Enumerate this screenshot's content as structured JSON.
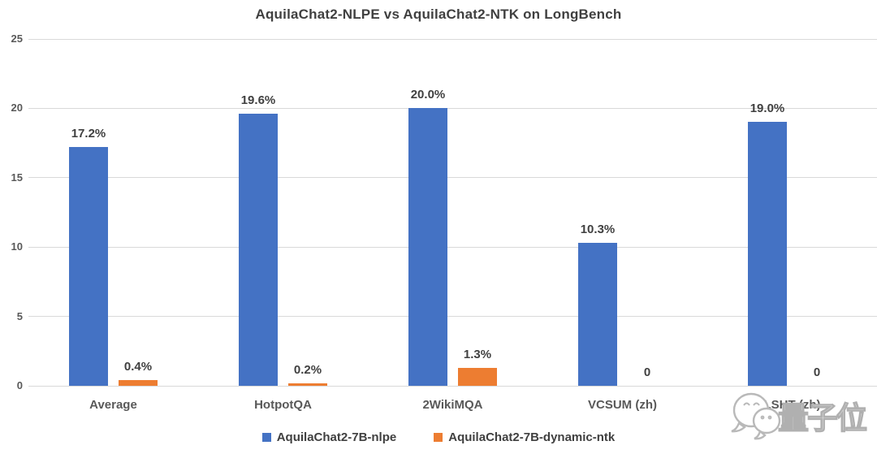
{
  "chart_data": {
    "type": "bar",
    "title": "AquilaChat2-NLPE vs AquilaChat2-NTK on LongBench",
    "categories": [
      "Average",
      "HotpotQA",
      "2WikiMQA",
      "VCSUM (zh)",
      "LSHT (zh)"
    ],
    "series": [
      {
        "name": "AquilaChat2-7B-nlpe",
        "color": "#4472C4",
        "values": [
          17.2,
          19.6,
          20.0,
          10.3,
          19.0
        ],
        "labels": [
          "17.2%",
          "19.6%",
          "20.0%",
          "10.3%",
          "19.0%"
        ]
      },
      {
        "name": "AquilaChat2-7B-dynamic-ntk",
        "color": "#ED7D31",
        "values": [
          0.4,
          0.2,
          1.3,
          0,
          0
        ],
        "labels": [
          "0.4%",
          "0.2%",
          "1.3%",
          "0",
          "0"
        ]
      }
    ],
    "ylim": [
      0,
      25
    ],
    "yticks": [
      0,
      5,
      10,
      15,
      20,
      25
    ],
    "grid": true,
    "legend_position": "bottom"
  },
  "watermark": {
    "text": "量子位"
  },
  "colors": {
    "series_blue": "#4472C4",
    "series_orange": "#ED7D31",
    "gridline": "#d9d9d9",
    "title_text": "#404040",
    "axis_text": "#595959",
    "watermark_gray": "#b9b9b9"
  }
}
